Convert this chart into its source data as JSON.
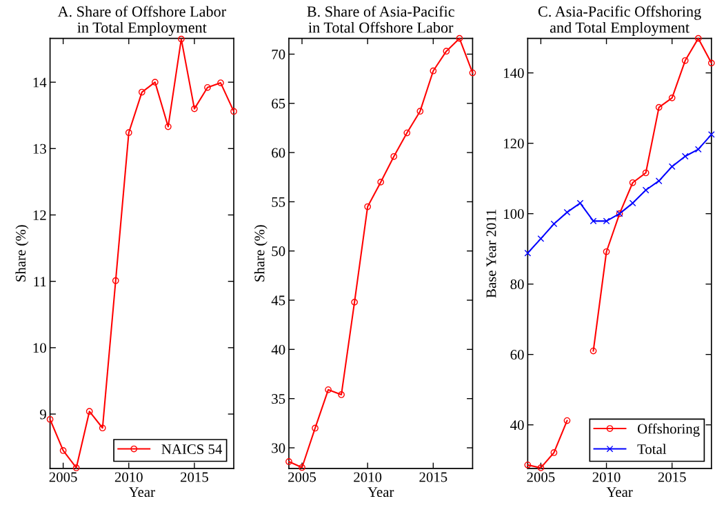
{
  "chart_data": [
    {
      "type": "line",
      "title": "A. Share of Offshore Labor\nin Total Employment",
      "xlabel": "Year",
      "ylabel": "Share (%)",
      "x": [
        2004,
        2005,
        2006,
        2007,
        2008,
        2009,
        2010,
        2011,
        2012,
        2013,
        2014,
        2015,
        2016,
        2017,
        2018
      ],
      "series": [
        {
          "name": "NAICS 54",
          "color": "#ff0000",
          "marker": "circle",
          "values": [
            8.92,
            8.45,
            8.19,
            9.04,
            8.79,
            11.01,
            13.24,
            13.85,
            14.0,
            13.33,
            14.65,
            13.6,
            13.92,
            13.99,
            13.56
          ]
        }
      ],
      "xlim": [
        2004,
        2018
      ],
      "xticks": [
        2005,
        2010,
        2015
      ],
      "ylim": [
        8.18,
        14.66
      ],
      "yticks": [
        9,
        10,
        11,
        12,
        13,
        14
      ],
      "grid": false,
      "legend": "bottom right"
    },
    {
      "type": "line",
      "title": "B. Share of Asia-Pacific\nin Total Offshore Labor",
      "xlabel": "Year",
      "ylabel": "Share (%)",
      "x": [
        2004,
        2005,
        2006,
        2007,
        2008,
        2009,
        2010,
        2011,
        2012,
        2013,
        2014,
        2015,
        2016,
        2017,
        2018
      ],
      "series": [
        {
          "color": "#ff0000",
          "marker": "circle",
          "values": [
            28.6,
            28.0,
            32.0,
            35.9,
            35.4,
            44.8,
            54.5,
            57.0,
            59.6,
            62.0,
            64.2,
            68.3,
            70.3,
            71.6,
            68.1
          ]
        }
      ],
      "xlim": [
        2004,
        2018
      ],
      "xticks": [
        2005,
        2010,
        2015
      ],
      "ylim": [
        27.9,
        71.6
      ],
      "yticks": [
        30,
        35,
        40,
        45,
        50,
        55,
        60,
        65,
        70
      ],
      "grid": false
    },
    {
      "type": "line",
      "title": "C. Asia-Pacific Offshoring\nand Total Employment",
      "xlabel": "Year",
      "ylabel": "Base Year 2011",
      "x": [
        2004,
        2005,
        2006,
        2007,
        2008,
        2009,
        2010,
        2011,
        2012,
        2013,
        2014,
        2015,
        2016,
        2017,
        2018
      ],
      "series": [
        {
          "name": "Offshoring",
          "color": "#ff0000",
          "marker": "circle",
          "values": [
            28.6,
            27.8,
            32.1,
            41.2,
            null,
            61.0,
            89.2,
            100,
            108.8,
            111.6,
            130.2,
            132.9,
            143.5,
            149.8,
            142.8
          ]
        },
        {
          "name": "Total",
          "color": "#0000ff",
          "marker": "cross",
          "values": [
            88.8,
            92.9,
            97.1,
            100.4,
            103,
            97.9,
            97.9,
            100,
            103,
            106.7,
            109.3,
            113.4,
            116.3,
            118.3,
            122.5
          ]
        }
      ],
      "xlim": [
        2004,
        2018
      ],
      "xticks": [
        2005,
        2010,
        2015
      ],
      "ylim": [
        27.6,
        149.8
      ],
      "yticks": [
        40,
        60,
        80,
        100,
        120,
        140
      ],
      "grid": false,
      "legend": "bottom right"
    }
  ]
}
